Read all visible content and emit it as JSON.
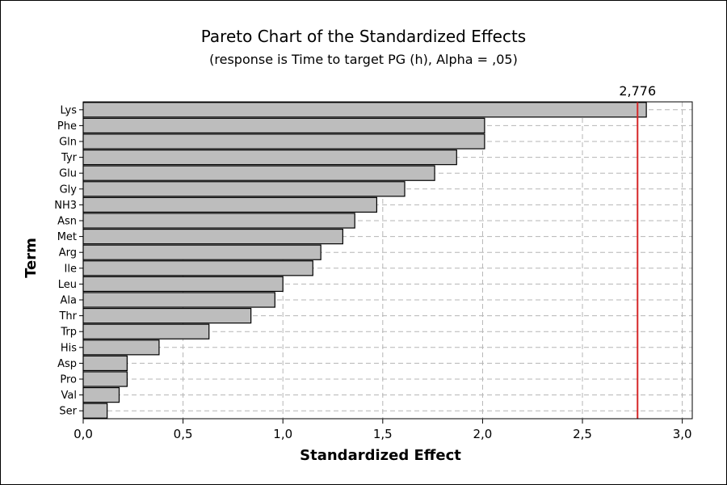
{
  "chart_data": {
    "type": "bar",
    "orientation": "horizontal",
    "title": "Pareto Chart of the Standardized Effects",
    "subtitle": "(response is Time to target PG (h), Alpha = ,05)",
    "xlabel": "Standardized Effect",
    "ylabel": "Term",
    "xlim": [
      0,
      3.05
    ],
    "x_ticks": [
      "0,0",
      "0,5",
      "1,0",
      "1,5",
      "2,0",
      "2,5",
      "3,0"
    ],
    "x_tick_values": [
      0,
      0.5,
      1,
      1.5,
      2,
      2.5,
      3
    ],
    "reference_line": {
      "value": 2.776,
      "label": "2,776",
      "color": "#d62728"
    },
    "grid": true,
    "bar_color": "#bdbdbd",
    "bar_edge_color": "#000000",
    "categories": [
      "Lys",
      "Phe",
      "Gln",
      "Tyr",
      "Glu",
      "Gly",
      "NH3",
      "Asn",
      "Met",
      "Arg",
      "Ile",
      "Leu",
      "Ala",
      "Thr",
      "Trp",
      "His",
      "Asp",
      "Pro",
      "Val",
      "Ser"
    ],
    "values": [
      2.82,
      2.01,
      2.01,
      1.87,
      1.76,
      1.61,
      1.47,
      1.36,
      1.3,
      1.19,
      1.15,
      1.0,
      0.96,
      0.84,
      0.63,
      0.38,
      0.22,
      0.22,
      0.18,
      0.12
    ]
  }
}
